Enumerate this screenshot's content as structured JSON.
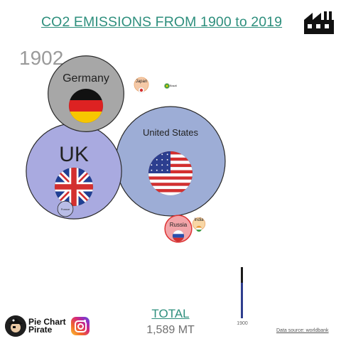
{
  "header": {
    "title": "CO2 EMISSIONS FROM 1900 to 2019",
    "icon": "factory-icon"
  },
  "year": "1902",
  "total": {
    "label": "TOTAL",
    "value": "1,589 MT"
  },
  "source": "Data source: worldbank",
  "timeline": {
    "label": "1900"
  },
  "brand": {
    "line1": "Pie Chart",
    "line2": "Pirate",
    "social_icon": "instagram-icon"
  },
  "chart_data": {
    "type": "bubble",
    "title": "CO2 EMISSIONS FROM 1900 to 2019",
    "year": 1902,
    "unit": "MT",
    "total": 1589,
    "series": [
      {
        "name": "United States",
        "relative_size": 1.0,
        "flag": "us",
        "color": "#9dadd6"
      },
      {
        "name": "UK",
        "relative_size": 0.76,
        "flag": "uk",
        "color": "#a9aae0"
      },
      {
        "name": "Germany",
        "relative_size": 0.48,
        "flag": "de",
        "color": "#a7a7a7"
      },
      {
        "name": "Russia",
        "relative_size": 0.06,
        "flag": "ru",
        "color": "#f2a5a9"
      },
      {
        "name": "France",
        "relative_size": 0.02,
        "flag": "fr",
        "color": "#b9bde6"
      },
      {
        "name": "Japan",
        "relative_size": 0.017,
        "flag": "jp",
        "color": "#f5c9a7"
      },
      {
        "name": "India",
        "relative_size": 0.013,
        "flag": "in",
        "color": "#f8d7a6"
      },
      {
        "name": "Brazil",
        "relative_size": 0.002,
        "flag": "br",
        "color": "#d9ebd0"
      }
    ]
  }
}
